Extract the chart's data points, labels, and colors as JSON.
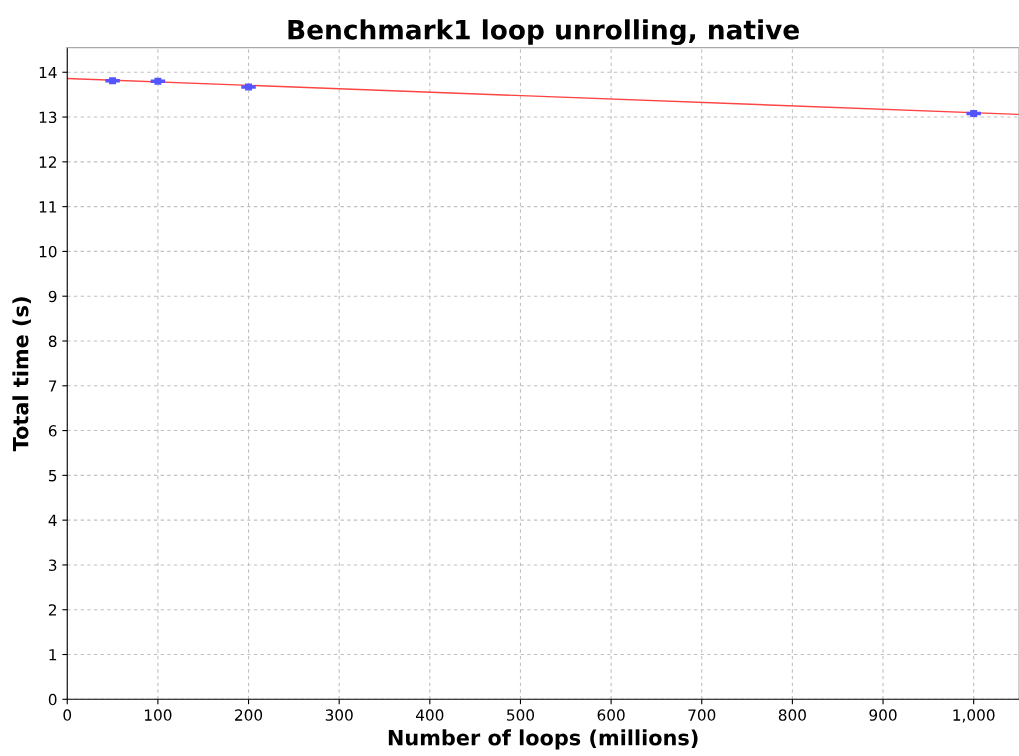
{
  "chart_data": {
    "type": "scatter",
    "title": "Benchmark1 loop unrolling, native",
    "xlabel": "Number of loops (millions)",
    "ylabel": "Total time (s)",
    "series": [
      {
        "color": "#5555ff",
        "x": [
          50,
          100,
          200,
          1000
        ],
        "values": [
          13.81,
          13.8,
          13.67,
          13.08
        ],
        "xerrors": [
          8,
          8,
          8,
          8
        ],
        "errors": [
          0.03,
          0.03,
          0.03,
          0.03
        ],
        "marker": "square"
      },
      {
        "type": "line",
        "color": "#ff4444",
        "x": [
          0,
          1050
        ],
        "values": [
          13.86,
          13.06
        ],
        "marker": "none",
        "line_style": "solid"
      }
    ],
    "xlim": [
      0,
      1050
    ],
    "ylim": [
      0,
      14.55
    ],
    "xticks": [
      0,
      100,
      200,
      300,
      400,
      500,
      600,
      700,
      800,
      900,
      {
        "value": 1000,
        "label": "1,000"
      }
    ],
    "yticks": [
      0,
      1,
      2,
      3,
      4,
      5,
      6,
      7,
      8,
      9,
      10,
      11,
      12,
      13,
      14
    ],
    "grid": true,
    "legend": false
  }
}
